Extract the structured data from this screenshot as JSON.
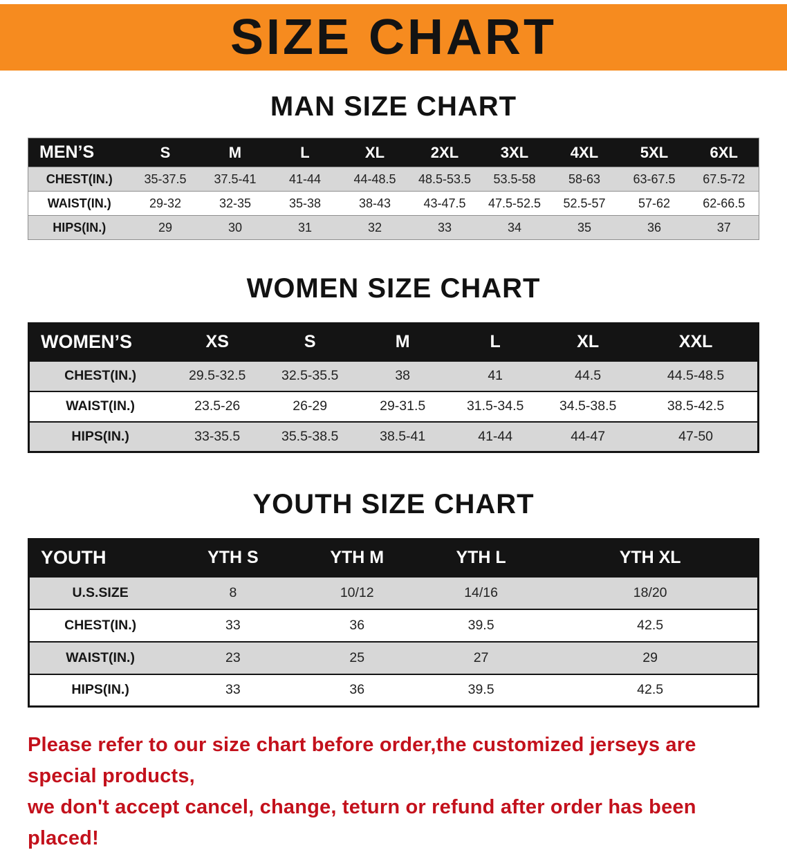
{
  "colors": {
    "banner_bg": "#F68B1F",
    "table_header_bg": "#141414",
    "row_shade": "#D7D7D7",
    "disclaimer_red": "#C3111C"
  },
  "banner": {
    "title": "SIZE CHART"
  },
  "sections": [
    {
      "id": "men",
      "heading": "MAN SIZE CHART",
      "table": {
        "header": [
          "MEN’S",
          "S",
          "M",
          "L",
          "XL",
          "2XL",
          "3XL",
          "4XL",
          "5XL",
          "6XL"
        ],
        "rows": [
          {
            "label": "CHEST(IN.)",
            "values": [
              "35-37.5",
              "37.5-41",
              "41-44",
              "44-48.5",
              "48.5-53.5",
              "53.5-58",
              "58-63",
              "63-67.5",
              "67.5-72"
            ]
          },
          {
            "label": "WAIST(IN.)",
            "values": [
              "29-32",
              "32-35",
              "35-38",
              "38-43",
              "43-47.5",
              "47.5-52.5",
              "52.5-57",
              "57-62",
              "62-66.5"
            ]
          },
          {
            "label": "HIPS(IN.)",
            "values": [
              "29",
              "30",
              "31",
              "32",
              "33",
              "34",
              "35",
              "36",
              "37"
            ]
          }
        ]
      }
    },
    {
      "id": "women",
      "heading": "WOMEN SIZE CHART",
      "table": {
        "header": [
          "WOMEN’S",
          "XS",
          "S",
          "M",
          "L",
          "XL",
          "XXL"
        ],
        "rows": [
          {
            "label": "CHEST(IN.)",
            "values": [
              "29.5-32.5",
              "32.5-35.5",
              "38",
              "41",
              "44.5",
              "44.5-48.5"
            ]
          },
          {
            "label": "WAIST(IN.)",
            "values": [
              "23.5-26",
              "26-29",
              "29-31.5",
              "31.5-34.5",
              "34.5-38.5",
              "38.5-42.5"
            ]
          },
          {
            "label": "HIPS(IN.)",
            "values": [
              "33-35.5",
              "35.5-38.5",
              "38.5-41",
              "41-44",
              "44-47",
              "47-50"
            ]
          }
        ]
      }
    },
    {
      "id": "youth",
      "heading": "YOUTH SIZE CHART",
      "table": {
        "header": [
          "YOUTH",
          "YTH S",
          "YTH M",
          "YTH L",
          "YTH XL"
        ],
        "rows": [
          {
            "label": "U.S.SIZE",
            "values": [
              "8",
              "10/12",
              "14/16",
              "18/20"
            ]
          },
          {
            "label": "CHEST(IN.)",
            "values": [
              "33",
              "36",
              "39.5",
              "42.5"
            ]
          },
          {
            "label": "WAIST(IN.)",
            "values": [
              "23",
              "25",
              "27",
              "29"
            ]
          },
          {
            "label": "HIPS(IN.)",
            "values": [
              "33",
              "36",
              "39.5",
              "42.5"
            ]
          }
        ]
      }
    }
  ],
  "disclaimer": {
    "lines": [
      "Please refer to our size chart before order,the customized jerseys are special products,",
      "we don't accept cancel, change, teturn or refund after order has been placed!"
    ]
  }
}
